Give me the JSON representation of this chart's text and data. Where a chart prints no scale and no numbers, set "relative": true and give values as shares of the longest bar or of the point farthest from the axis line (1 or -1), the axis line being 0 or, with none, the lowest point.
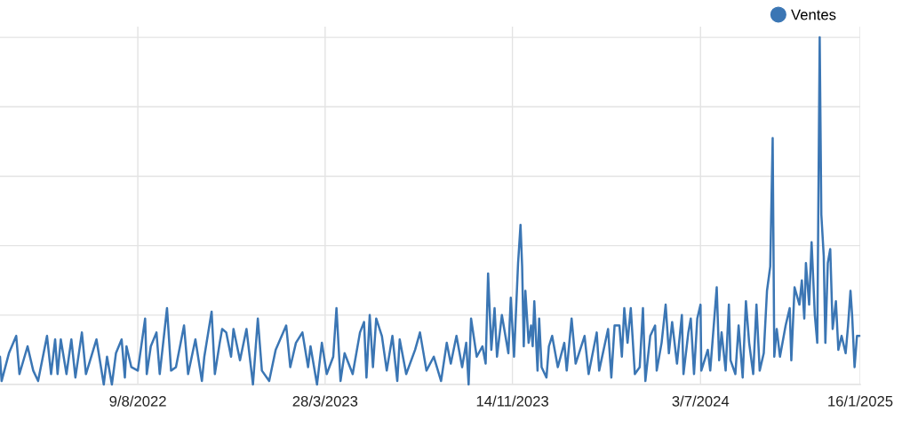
{
  "chart_data": {
    "type": "line",
    "x": [
      "2022-02-20",
      "2022-02-22",
      "2022-03-03",
      "2022-03-12",
      "2022-03-16",
      "2022-03-26",
      "2022-04-02",
      "2022-04-08",
      "2022-04-19",
      "2022-04-24",
      "2022-04-29",
      "2022-05-02",
      "2022-05-06",
      "2022-05-13",
      "2022-05-19",
      "2022-05-24",
      "2022-06-01",
      "2022-06-06",
      "2022-06-19",
      "2022-06-28",
      "2022-07-02",
      "2022-07-08",
      "2022-07-13",
      "2022-07-20",
      "2022-07-24",
      "2022-07-26",
      "2022-08-01",
      "2022-08-09",
      "2022-08-18",
      "2022-08-20",
      "2022-08-25",
      "2022-09-01",
      "2022-09-05",
      "2022-09-14",
      "2022-09-19",
      "2022-09-25",
      "2022-10-05",
      "2022-10-10",
      "2022-10-19",
      "2022-10-27",
      "2022-10-30",
      "2022-11-08",
      "2022-11-12",
      "2022-11-18",
      "2022-11-21",
      "2022-11-26",
      "2022-12-02",
      "2022-12-05",
      "2022-12-13",
      "2022-12-21",
      "2022-12-29",
      "2023-01-04",
      "2023-01-09",
      "2023-01-18",
      "2023-01-26",
      "2023-02-08",
      "2023-02-13",
      "2023-02-20",
      "2023-02-28",
      "2023-03-07",
      "2023-03-10",
      "2023-03-18",
      "2023-03-24",
      "2023-03-30",
      "2023-04-07",
      "2023-04-11",
      "2023-04-16",
      "2023-04-21",
      "2023-05-01",
      "2023-05-10",
      "2023-05-15",
      "2023-05-18",
      "2023-05-22",
      "2023-05-26",
      "2023-05-30",
      "2023-06-06",
      "2023-06-12",
      "2023-06-19",
      "2023-06-25",
      "2023-06-28",
      "2023-07-06",
      "2023-07-17",
      "2023-07-23",
      "2023-07-31",
      "2023-08-09",
      "2023-08-18",
      "2023-08-25",
      "2023-08-30",
      "2023-09-06",
      "2023-09-13",
      "2023-09-18",
      "2023-09-21",
      "2023-09-24",
      "2023-10-01",
      "2023-10-08",
      "2023-10-12",
      "2023-10-15",
      "2023-10-19",
      "2023-10-23",
      "2023-10-26",
      "2023-11-01",
      "2023-11-09",
      "2023-11-12",
      "2023-11-16",
      "2023-11-21",
      "2023-11-24",
      "2023-11-26",
      "2023-11-28",
      "2023-11-30",
      "2023-12-04",
      "2023-12-07",
      "2023-12-09",
      "2023-12-11",
      "2023-12-15",
      "2023-12-17",
      "2023-12-20",
      "2023-12-26",
      "2023-12-29",
      "2024-01-02",
      "2024-01-09",
      "2024-01-17",
      "2024-01-20",
      "2024-01-26",
      "2024-01-31",
      "2024-02-11",
      "2024-02-16",
      "2024-02-26",
      "2024-02-29",
      "2024-03-11",
      "2024-03-15",
      "2024-03-19",
      "2024-03-25",
      "2024-03-28",
      "2024-03-31",
      "2024-04-04",
      "2024-04-08",
      "2024-04-13",
      "2024-04-19",
      "2024-04-23",
      "2024-04-26",
      "2024-05-02",
      "2024-05-08",
      "2024-05-10",
      "2024-05-16",
      "2024-05-21",
      "2024-05-25",
      "2024-05-29",
      "2024-06-04",
      "2024-06-10",
      "2024-06-12",
      "2024-06-18",
      "2024-06-21",
      "2024-06-25",
      "2024-06-29",
      "2024-07-03",
      "2024-07-04",
      "2024-07-12",
      "2024-07-15",
      "2024-07-23",
      "2024-07-26",
      "2024-07-29",
      "2024-08-03",
      "2024-08-07",
      "2024-08-09",
      "2024-08-15",
      "2024-08-19",
      "2024-08-24",
      "2024-08-28",
      "2024-09-01",
      "2024-09-06",
      "2024-09-10",
      "2024-09-14",
      "2024-09-19",
      "2024-09-23",
      "2024-09-27",
      "2024-09-30",
      "2024-10-02",
      "2024-10-05",
      "2024-10-09",
      "2024-10-16",
      "2024-10-21",
      "2024-10-23",
      "2024-10-27",
      "2024-11-02",
      "2024-11-05",
      "2024-11-08",
      "2024-11-10",
      "2024-11-14",
      "2024-11-17",
      "2024-11-21",
      "2024-11-24",
      "2024-11-27",
      "2024-11-29",
      "2024-12-02",
      "2024-12-04",
      "2024-12-07",
      "2024-12-10",
      "2024-12-13",
      "2024-12-17",
      "2024-12-20",
      "2024-12-24",
      "2024-12-29",
      "2025-01-01",
      "2025-01-04",
      "2025-01-06",
      "2025-01-09",
      "2025-01-12",
      "2025-01-15"
    ],
    "series": [
      {
        "name": "Ventes",
        "color": "#3b76b4",
        "values": [
          0.08,
          0.01,
          0.09,
          0.14,
          0.03,
          0.11,
          0.04,
          0.01,
          0.14,
          0.03,
          0.13,
          0.03,
          0.13,
          0.03,
          0.13,
          0.02,
          0.15,
          0.03,
          0.13,
          0.0,
          0.08,
          0.0,
          0.09,
          0.13,
          0.02,
          0.11,
          0.05,
          0.04,
          0.19,
          0.03,
          0.11,
          0.15,
          0.03,
          0.22,
          0.04,
          0.05,
          0.17,
          0.03,
          0.13,
          0.01,
          0.08,
          0.21,
          0.03,
          0.12,
          0.16,
          0.15,
          0.08,
          0.16,
          0.07,
          0.16,
          0.0,
          0.19,
          0.04,
          0.01,
          0.1,
          0.17,
          0.05,
          0.12,
          0.15,
          0.05,
          0.11,
          0.0,
          0.12,
          0.03,
          0.08,
          0.22,
          0.01,
          0.09,
          0.03,
          0.15,
          0.18,
          0.02,
          0.2,
          0.05,
          0.19,
          0.14,
          0.04,
          0.14,
          0.01,
          0.13,
          0.03,
          0.1,
          0.15,
          0.04,
          0.08,
          0.01,
          0.12,
          0.06,
          0.14,
          0.05,
          0.12,
          0.0,
          0.19,
          0.08,
          0.11,
          0.06,
          0.32,
          0.1,
          0.22,
          0.08,
          0.2,
          0.09,
          0.25,
          0.08,
          0.35,
          0.46,
          0.34,
          0.11,
          0.27,
          0.12,
          0.17,
          0.11,
          0.24,
          0.04,
          0.19,
          0.05,
          0.02,
          0.11,
          0.14,
          0.05,
          0.12,
          0.04,
          0.19,
          0.06,
          0.14,
          0.03,
          0.15,
          0.04,
          0.16,
          0.02,
          0.17,
          0.17,
          0.08,
          0.22,
          0.12,
          0.22,
          0.03,
          0.05,
          0.22,
          0.01,
          0.14,
          0.17,
          0.04,
          0.12,
          0.23,
          0.09,
          0.18,
          0.06,
          0.2,
          0.03,
          0.15,
          0.19,
          0.03,
          0.19,
          0.23,
          0.04,
          0.1,
          0.04,
          0.28,
          0.07,
          0.15,
          0.04,
          0.23,
          0.07,
          0.03,
          0.17,
          0.02,
          0.24,
          0.12,
          0.03,
          0.23,
          0.04,
          0.09,
          0.27,
          0.34,
          0.71,
          0.08,
          0.16,
          0.08,
          0.17,
          0.22,
          0.07,
          0.28,
          0.23,
          0.3,
          0.19,
          0.35,
          0.23,
          0.41,
          0.2,
          0.12,
          1.0,
          0.49,
          0.37,
          0.12,
          0.35,
          0.39,
          0.16,
          0.24,
          0.1,
          0.14,
          0.09,
          0.17,
          0.27,
          0.2,
          0.05,
          0.14,
          0.14
        ]
      }
    ],
    "relative": true,
    "xlim": [
      "2022-02-20",
      "2025-01-16"
    ],
    "xticks": [
      {
        "value": "2022-08-09",
        "label": "9/8/2022"
      },
      {
        "value": "2023-03-28",
        "label": "28/3/2023"
      },
      {
        "value": "2023-11-14",
        "label": "14/11/2023"
      },
      {
        "value": "2024-07-03",
        "label": "3/7/2024"
      },
      {
        "value": "2025-01-16",
        "label": "16/1/2025"
      }
    ],
    "grid": true,
    "legend": "top right"
  }
}
